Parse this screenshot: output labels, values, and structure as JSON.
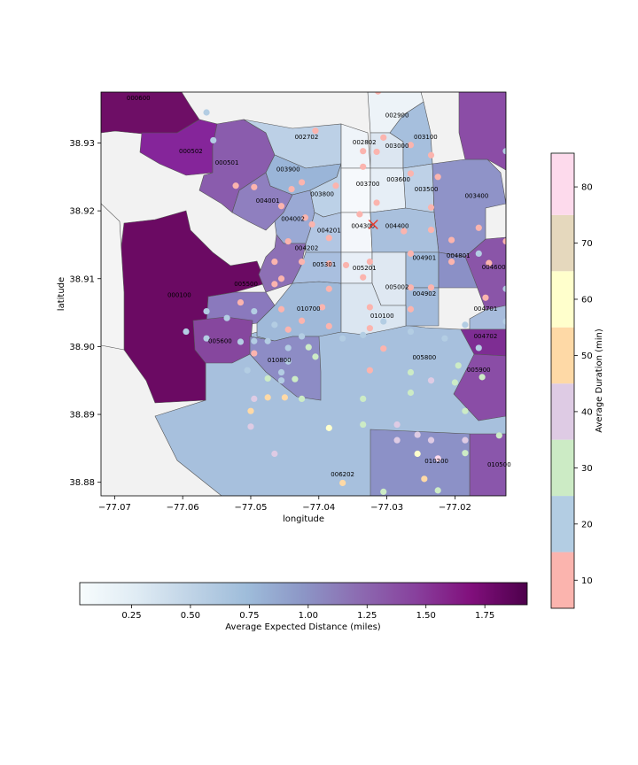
{
  "map": {
    "xlabel": "longitude",
    "ylabel": "latitude",
    "xlim": [
      -77.072,
      -77.0125
    ],
    "ylim": [
      38.878,
      38.9375
    ],
    "x_ticks": [
      -77.07,
      -77.06,
      -77.05,
      -77.04,
      -77.03,
      -77.02
    ],
    "x_tick_labels": [
      "−77.07",
      "−77.06",
      "−77.05",
      "−77.04",
      "−77.03",
      "−77.02"
    ],
    "y_ticks": [
      38.88,
      38.89,
      38.9,
      38.91,
      38.92,
      38.93
    ],
    "y_tick_labels": [
      "38.88",
      "38.89",
      "38.90",
      "38.91",
      "38.92",
      "38.93"
    ],
    "marker": {
      "symbol": "x",
      "lon": -77.032,
      "lat": 38.918,
      "color": "#e8382a"
    },
    "tracts": [
      {
        "id": "000600",
        "lon": -77.0665,
        "lat": 38.9363
      },
      {
        "id": "000502",
        "lon": -77.0588,
        "lat": 38.9285
      },
      {
        "id": "000501",
        "lon": -77.0535,
        "lat": 38.9268
      },
      {
        "id": "002702",
        "lon": -77.0418,
        "lat": 38.9306
      },
      {
        "id": "002802",
        "lon": -77.0333,
        "lat": 38.9298
      },
      {
        "id": "002900",
        "lon": -77.0285,
        "lat": 38.9338
      },
      {
        "id": "003000",
        "lon": -77.0285,
        "lat": 38.9293
      },
      {
        "id": "003100",
        "lon": -77.0243,
        "lat": 38.9306
      },
      {
        "id": "003900",
        "lon": -77.0445,
        "lat": 38.9258
      },
      {
        "id": "003700",
        "lon": -77.0328,
        "lat": 38.9237
      },
      {
        "id": "003600",
        "lon": -77.0283,
        "lat": 38.9243
      },
      {
        "id": "003500",
        "lon": -77.0242,
        "lat": 38.9229
      },
      {
        "id": "003400",
        "lon": -77.0168,
        "lat": 38.9219
      },
      {
        "id": "003800",
        "lon": -77.0395,
        "lat": 38.9222
      },
      {
        "id": "004001",
        "lon": -77.0475,
        "lat": 38.9212
      },
      {
        "id": "004002",
        "lon": -77.0438,
        "lat": 38.9185
      },
      {
        "id": "004201",
        "lon": -77.0385,
        "lat": 38.9168
      },
      {
        "id": "004300",
        "lon": -77.0335,
        "lat": 38.9175
      },
      {
        "id": "004400",
        "lon": -77.0285,
        "lat": 38.9175
      },
      {
        "id": "004202",
        "lon": -77.0418,
        "lat": 38.9142
      },
      {
        "id": "004901",
        "lon": -77.0245,
        "lat": 38.9128
      },
      {
        "id": "004801",
        "lon": -77.0195,
        "lat": 38.9131
      },
      {
        "id": "004600",
        "lon": -77.0143,
        "lat": 38.9114
      },
      {
        "id": "005301",
        "lon": -77.0392,
        "lat": 38.9118
      },
      {
        "id": "005201",
        "lon": -77.0333,
        "lat": 38.9113
      },
      {
        "id": "005500",
        "lon": -77.0507,
        "lat": 38.9089
      },
      {
        "id": "005002",
        "lon": -77.0285,
        "lat": 38.9085
      },
      {
        "id": "004902",
        "lon": -77.0245,
        "lat": 38.9075
      },
      {
        "id": "000100",
        "lon": -77.0605,
        "lat": 38.9073
      },
      {
        "id": "010700",
        "lon": -77.0415,
        "lat": 38.9053
      },
      {
        "id": "004701",
        "lon": -77.0155,
        "lat": 38.9053
      },
      {
        "id": "010100",
        "lon": -77.0307,
        "lat": 38.9042
      },
      {
        "id": "004702",
        "lon": -77.0155,
        "lat": 38.9012
      },
      {
        "id": "005600",
        "lon": -77.0545,
        "lat": 38.9005
      },
      {
        "id": "005800",
        "lon": -77.0245,
        "lat": 38.8981
      },
      {
        "id": "010800",
        "lon": -77.0458,
        "lat": 38.8977
      },
      {
        "id": "005900",
        "lon": -77.0165,
        "lat": 38.8963
      },
      {
        "id": "010200",
        "lon": -77.0227,
        "lat": 38.8828
      },
      {
        "id": "010500",
        "lon": -77.0135,
        "lat": 38.8823
      },
      {
        "id": "006202",
        "lon": -77.0365,
        "lat": 38.8809
      }
    ],
    "stations": [
      {
        "lon": -77.0313,
        "lat": 38.9376,
        "duration": 10
      },
      {
        "lon": -77.0565,
        "lat": 38.9345,
        "duration": 20
      },
      {
        "lon": -77.0405,
        "lat": 38.9318,
        "duration": 10
      },
      {
        "lon": -77.0555,
        "lat": 38.9304,
        "duration": 20
      },
      {
        "lon": -77.0305,
        "lat": 38.9308,
        "duration": 10
      },
      {
        "lon": -77.0265,
        "lat": 38.9297,
        "duration": 10
      },
      {
        "lon": -77.0235,
        "lat": 38.9282,
        "duration": 10
      },
      {
        "lon": -77.0335,
        "lat": 38.9288,
        "duration": 10
      },
      {
        "lon": -77.0315,
        "lat": 38.9287,
        "duration": 10
      },
      {
        "lon": -77.0125,
        "lat": 38.9288,
        "duration": 20
      },
      {
        "lon": -77.0335,
        "lat": 38.9265,
        "duration": 10
      },
      {
        "lon": -77.0265,
        "lat": 38.9255,
        "duration": 10
      },
      {
        "lon": -77.0225,
        "lat": 38.925,
        "duration": 10
      },
      {
        "lon": -77.0522,
        "lat": 38.9237,
        "duration": 10
      },
      {
        "lon": -77.0495,
        "lat": 38.9235,
        "duration": 10
      },
      {
        "lon": -77.0425,
        "lat": 38.9242,
        "duration": 10
      },
      {
        "lon": -77.044,
        "lat": 38.9232,
        "duration": 10
      },
      {
        "lon": -77.0375,
        "lat": 38.9237,
        "duration": 10
      },
      {
        "lon": -77.0315,
        "lat": 38.9212,
        "duration": 10
      },
      {
        "lon": -77.0455,
        "lat": 38.9207,
        "duration": 10
      },
      {
        "lon": -77.0235,
        "lat": 38.9205,
        "duration": 10
      },
      {
        "lon": -77.034,
        "lat": 38.9195,
        "duration": 10
      },
      {
        "lon": -77.042,
        "lat": 38.919,
        "duration": 10
      },
      {
        "lon": -77.041,
        "lat": 38.918,
        "duration": 10
      },
      {
        "lon": -77.0235,
        "lat": 38.9172,
        "duration": 10
      },
      {
        "lon": -77.0275,
        "lat": 38.917,
        "duration": 10
      },
      {
        "lon": -77.0165,
        "lat": 38.9175,
        "duration": 10
      },
      {
        "lon": -77.0385,
        "lat": 38.916,
        "duration": 10
      },
      {
        "lon": -77.0445,
        "lat": 38.9155,
        "duration": 10
      },
      {
        "lon": -77.0205,
        "lat": 38.9157,
        "duration": 10
      },
      {
        "lon": -77.0125,
        "lat": 38.9155,
        "duration": 10
      },
      {
        "lon": -77.0265,
        "lat": 38.9137,
        "duration": 10
      },
      {
        "lon": -77.0165,
        "lat": 38.9137,
        "duration": 20
      },
      {
        "lon": -77.015,
        "lat": 38.9123,
        "duration": 10
      },
      {
        "lon": -77.0465,
        "lat": 38.9125,
        "duration": 10
      },
      {
        "lon": -77.0425,
        "lat": 38.9125,
        "duration": 10
      },
      {
        "lon": -77.0385,
        "lat": 38.9122,
        "duration": 10
      },
      {
        "lon": -77.0325,
        "lat": 38.9125,
        "duration": 10
      },
      {
        "lon": -77.036,
        "lat": 38.912,
        "duration": 10
      },
      {
        "lon": -77.0205,
        "lat": 38.9125,
        "duration": 10
      },
      {
        "lon": -77.0455,
        "lat": 38.91,
        "duration": 10
      },
      {
        "lon": -77.0335,
        "lat": 38.9102,
        "duration": 10
      },
      {
        "lon": -77.0465,
        "lat": 38.9092,
        "duration": 10
      },
      {
        "lon": -77.0385,
        "lat": 38.9085,
        "duration": 10
      },
      {
        "lon": -77.0265,
        "lat": 38.9087,
        "duration": 10
      },
      {
        "lon": -77.0235,
        "lat": 38.9087,
        "duration": 10
      },
      {
        "lon": -77.0125,
        "lat": 38.9085,
        "duration": 20
      },
      {
        "lon": -77.0155,
        "lat": 38.9072,
        "duration": 10
      },
      {
        "lon": -77.0515,
        "lat": 38.9065,
        "duration": 10
      },
      {
        "lon": -77.0565,
        "lat": 38.9052,
        "duration": 20
      },
      {
        "lon": -77.0495,
        "lat": 38.9052,
        "duration": 20
      },
      {
        "lon": -77.0455,
        "lat": 38.9055,
        "duration": 10
      },
      {
        "lon": -77.0395,
        "lat": 38.9058,
        "duration": 10
      },
      {
        "lon": -77.0325,
        "lat": 38.9058,
        "duration": 10
      },
      {
        "lon": -77.0265,
        "lat": 38.9055,
        "duration": 10
      },
      {
        "lon": -77.0305,
        "lat": 38.9037,
        "duration": 20
      },
      {
        "lon": -77.0185,
        "lat": 38.9032,
        "duration": 20
      },
      {
        "lon": -77.0535,
        "lat": 38.9042,
        "duration": 20
      },
      {
        "lon": -77.0425,
        "lat": 38.9038,
        "duration": 10
      },
      {
        "lon": -77.0465,
        "lat": 38.9032,
        "duration": 20
      },
      {
        "lon": -77.0445,
        "lat": 38.9025,
        "duration": 10
      },
      {
        "lon": -77.0385,
        "lat": 38.903,
        "duration": 10
      },
      {
        "lon": -77.0325,
        "lat": 38.9027,
        "duration": 10
      },
      {
        "lon": -77.0335,
        "lat": 38.9017,
        "duration": 20
      },
      {
        "lon": -77.0265,
        "lat": 38.9022,
        "duration": 20
      },
      {
        "lon": -77.0125,
        "lat": 38.9037,
        "duration": 20
      },
      {
        "lon": -77.0595,
        "lat": 38.9022,
        "duration": 20
      },
      {
        "lon": -77.0215,
        "lat": 38.9012,
        "duration": 20
      },
      {
        "lon": -77.0565,
        "lat": 38.9012,
        "duration": 20
      },
      {
        "lon": -77.0515,
        "lat": 38.9007,
        "duration": 20
      },
      {
        "lon": -77.0495,
        "lat": 38.9008,
        "duration": 20
      },
      {
        "lon": -77.0425,
        "lat": 38.9015,
        "duration": 20
      },
      {
        "lon": -77.0475,
        "lat": 38.9008,
        "duration": 20
      },
      {
        "lon": -77.0365,
        "lat": 38.9012,
        "duration": 20
      },
      {
        "lon": -77.0445,
        "lat": 38.8998,
        "duration": 20
      },
      {
        "lon": -77.0415,
        "lat": 38.8999,
        "duration": 30
      },
      {
        "lon": -77.0305,
        "lat": 38.8997,
        "duration": 10
      },
      {
        "lon": -77.0165,
        "lat": 38.8998,
        "duration": 20
      },
      {
        "lon": -77.0495,
        "lat": 38.899,
        "duration": 10
      },
      {
        "lon": -77.0405,
        "lat": 38.8985,
        "duration": 30
      },
      {
        "lon": -77.0445,
        "lat": 38.8978,
        "duration": 20
      },
      {
        "lon": -77.0505,
        "lat": 38.8965,
        "duration": 20
      },
      {
        "lon": -77.0455,
        "lat": 38.8962,
        "duration": 20
      },
      {
        "lon": -77.0325,
        "lat": 38.8965,
        "duration": 10
      },
      {
        "lon": -77.0195,
        "lat": 38.8972,
        "duration": 30
      },
      {
        "lon": -77.0265,
        "lat": 38.8962,
        "duration": 30
      },
      {
        "lon": -77.0475,
        "lat": 38.8953,
        "duration": 30
      },
      {
        "lon": -77.0455,
        "lat": 38.895,
        "duration": 20
      },
      {
        "lon": -77.0435,
        "lat": 38.8952,
        "duration": 30
      },
      {
        "lon": -77.0235,
        "lat": 38.895,
        "duration": 40
      },
      {
        "lon": -77.02,
        "lat": 38.8947,
        "duration": 30
      },
      {
        "lon": -77.016,
        "lat": 38.8955,
        "duration": 30
      },
      {
        "lon": -77.0495,
        "lat": 38.8923,
        "duration": 40
      },
      {
        "lon": -77.0475,
        "lat": 38.8925,
        "duration": 50
      },
      {
        "lon": -77.045,
        "lat": 38.8925,
        "duration": 50
      },
      {
        "lon": -77.0425,
        "lat": 38.8923,
        "duration": 30
      },
      {
        "lon": -77.0335,
        "lat": 38.8923,
        "duration": 30
      },
      {
        "lon": -77.0265,
        "lat": 38.8932,
        "duration": 30
      },
      {
        "lon": -77.05,
        "lat": 38.8905,
        "duration": 50
      },
      {
        "lon": -77.0185,
        "lat": 38.8905,
        "duration": 30
      },
      {
        "lon": -77.05,
        "lat": 38.8882,
        "duration": 40
      },
      {
        "lon": -77.0385,
        "lat": 38.888,
        "duration": 60
      },
      {
        "lon": -77.0335,
        "lat": 38.8885,
        "duration": 30
      },
      {
        "lon": -77.0285,
        "lat": 38.8885,
        "duration": 40
      },
      {
        "lon": -77.0255,
        "lat": 38.887,
        "duration": 40
      },
      {
        "lon": -77.0135,
        "lat": 38.8869,
        "duration": 30
      },
      {
        "lon": -77.0285,
        "lat": 38.8862,
        "duration": 40
      },
      {
        "lon": -77.0235,
        "lat": 38.8862,
        "duration": 40
      },
      {
        "lon": -77.0185,
        "lat": 38.8862,
        "duration": 40
      },
      {
        "lon": -77.0255,
        "lat": 38.8842,
        "duration": 60
      },
      {
        "lon": -77.0185,
        "lat": 38.8843,
        "duration": 30
      },
      {
        "lon": -77.0465,
        "lat": 38.8842,
        "duration": 40
      },
      {
        "lon": -77.0225,
        "lat": 38.8835,
        "duration": 80
      },
      {
        "lon": -77.0245,
        "lat": 38.8805,
        "duration": 50
      },
      {
        "lon": -77.0365,
        "lat": 38.8799,
        "duration": 50
      },
      {
        "lon": -77.0225,
        "lat": 38.8788,
        "duration": 30
      },
      {
        "lon": -77.0305,
        "lat": 38.8786,
        "duration": 30
      }
    ]
  },
  "colorbar_distance": {
    "label": "Average Expected Distance (miles)",
    "vmin": 0.03,
    "vmax": 1.93,
    "ticks": [
      0.25,
      0.5,
      0.75,
      1.0,
      1.25,
      1.5,
      1.75
    ],
    "tick_labels": [
      "0.25",
      "0.50",
      "0.75",
      "1.00",
      "1.25",
      "1.50",
      "1.75"
    ],
    "cmap": [
      "#f7fcfd",
      "#e0ecf4",
      "#bfd3e6",
      "#9ebcda",
      "#8c96c6",
      "#8c6bb1",
      "#88419d",
      "#810f7c",
      "#4d004b"
    ]
  },
  "colorbar_duration": {
    "label": "Average Duration (min)",
    "vmin": 5,
    "vmax": 86,
    "ticks": [
      10,
      20,
      30,
      40,
      50,
      60,
      70,
      80
    ],
    "tick_labels": [
      "10",
      "20",
      "30",
      "40",
      "50",
      "60",
      "70",
      "80"
    ],
    "bins": [
      {
        "from": 5,
        "to": 15,
        "color": "#fbb4ae"
      },
      {
        "from": 15,
        "to": 25,
        "color": "#b3cde3"
      },
      {
        "from": 25,
        "to": 35,
        "color": "#ccebc5"
      },
      {
        "from": 35,
        "to": 45,
        "color": "#decbe4"
      },
      {
        "from": 45,
        "to": 55,
        "color": "#fed9a6"
      },
      {
        "from": 55,
        "to": 65,
        "color": "#ffffcc"
      },
      {
        "from": 65,
        "to": 75,
        "color": "#e5d8bd"
      },
      {
        "from": 75,
        "to": 86,
        "color": "#fddaec"
      },
      {
        "from": 86,
        "to": 86,
        "color": "#f2f2f2"
      }
    ]
  },
  "colors": {
    "out_of_area": "#f2f2f2",
    "boundary": "#555555"
  }
}
